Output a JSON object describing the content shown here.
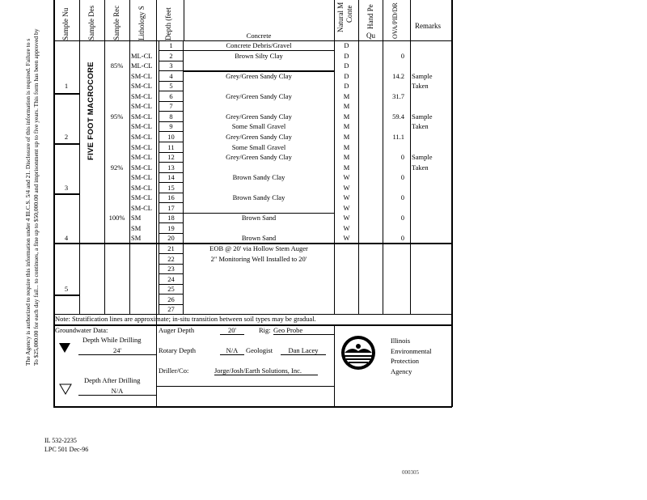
{
  "notice": {
    "line1": "The Agency is authorized to require this information under 4 Ill.C.S. 5/4 and 21. Disclosure of this information is required. Failure to s",
    "line2": "To $25,000.00 for each day fail... to continues, a fine up to $50,000.00 and imprisonment up to five years. This form has been approved by"
  },
  "headers": {
    "sample_number": "Sample Nu",
    "sample_description": "Sample Des",
    "sample_recovery": "Sample Rec",
    "lithology": "Lithology S",
    "depth": "Depth (feet",
    "description": "Concrete",
    "moisture_1": "Natural M",
    "moisture_2": "Conte",
    "hand_pen": "Hand Pe",
    "hand_pen_sub": "Qu",
    "ova": "OVA/PID/DR",
    "remarks": "Remarks"
  },
  "sample_description": "FIVE FOOT MACROCORE",
  "samples": [
    "1",
    "2",
    "3",
    "4",
    "5"
  ],
  "recoveries": [
    {
      "row": 3,
      "value": "85%"
    },
    {
      "row": 8,
      "value": "95%"
    },
    {
      "row": 13,
      "value": "92%"
    },
    {
      "row": 18,
      "value": "100%"
    }
  ],
  "rows": [
    {
      "depth": "1",
      "lith": "",
      "desc": "Concrete Debris/Gravel",
      "moist": "D",
      "ova": "",
      "remark": ""
    },
    {
      "depth": "2",
      "lith": "ML-CL",
      "desc": "Brown Silty Clay",
      "moist": "D",
      "ova": "0",
      "remark": ""
    },
    {
      "depth": "3",
      "lith": "ML-CL",
      "desc": "",
      "moist": "D",
      "ova": "",
      "remark": ""
    },
    {
      "depth": "4",
      "lith": "SM-CL",
      "desc": "Grey/Green Sandy Clay",
      "moist": "D",
      "ova": "14.2",
      "remark": "Sample"
    },
    {
      "depth": "5",
      "lith": "SM-CL",
      "desc": "",
      "moist": "D",
      "ova": "",
      "remark": "Taken"
    },
    {
      "depth": "6",
      "lith": "SM-CL",
      "desc": "Grey/Green Sandy Clay",
      "moist": "M",
      "ova": "31.7",
      "remark": ""
    },
    {
      "depth": "7",
      "lith": "SM-CL",
      "desc": "",
      "moist": "M",
      "ova": "",
      "remark": ""
    },
    {
      "depth": "8",
      "lith": "SM-CL",
      "desc": "Grey/Green Sandy Clay",
      "moist": "M",
      "ova": "59.4",
      "remark": "Sample"
    },
    {
      "depth": "9",
      "lith": "SM-CL",
      "desc": "Some Small Gravel",
      "moist": "M",
      "ova": "",
      "remark": "Taken"
    },
    {
      "depth": "10",
      "lith": "SM-CL",
      "desc": "Grey/Green Sandy Clay",
      "moist": "M",
      "ova": "11.1",
      "remark": ""
    },
    {
      "depth": "11",
      "lith": "SM-CL",
      "desc": "Some Small Gravel",
      "moist": "M",
      "ova": "",
      "remark": ""
    },
    {
      "depth": "12",
      "lith": "SM-CL",
      "desc": "Grey/Green Sandy Clay",
      "moist": "M",
      "ova": "0",
      "remark": "Sample"
    },
    {
      "depth": "13",
      "lith": "SM-CL",
      "desc": "",
      "moist": "M",
      "ova": "",
      "remark": "Taken"
    },
    {
      "depth": "14",
      "lith": "SM-CL",
      "desc": "Brown Sandy Clay",
      "moist": "W",
      "ova": "0",
      "remark": ""
    },
    {
      "depth": "15",
      "lith": "SM-CL",
      "desc": "",
      "moist": "W",
      "ova": "",
      "remark": ""
    },
    {
      "depth": "16",
      "lith": "SM-CL",
      "desc": "Brown Sandy Clay",
      "moist": "W",
      "ova": "0",
      "remark": ""
    },
    {
      "depth": "17",
      "lith": "SM-CL",
      "desc": "",
      "moist": "W",
      "ova": "",
      "remark": ""
    },
    {
      "depth": "18",
      "lith": "SM",
      "desc": "Brown Sand",
      "moist": "W",
      "ova": "0",
      "remark": ""
    },
    {
      "depth": "19",
      "lith": "SM",
      "desc": "",
      "moist": "W",
      "ova": "",
      "remark": ""
    },
    {
      "depth": "20",
      "lith": "SM",
      "desc": "Brown Sand",
      "moist": "W",
      "ova": "0",
      "remark": ""
    },
    {
      "depth": "21",
      "lith": "",
      "desc": "EOB @ 20' via Hollow Stem Auger",
      "moist": "",
      "ova": "",
      "remark": ""
    },
    {
      "depth": "22",
      "lith": "",
      "desc": "2\" Monitoring Well Installed to 20'",
      "moist": "",
      "ova": "",
      "remark": ""
    },
    {
      "depth": "23",
      "lith": "",
      "desc": "",
      "moist": "",
      "ova": "",
      "remark": ""
    },
    {
      "depth": "24",
      "lith": "",
      "desc": "",
      "moist": "",
      "ova": "",
      "remark": ""
    },
    {
      "depth": "25",
      "lith": "",
      "desc": "",
      "moist": "",
      "ova": "",
      "remark": ""
    },
    {
      "depth": "26",
      "lith": "",
      "desc": "",
      "moist": "",
      "ova": "",
      "remark": ""
    },
    {
      "depth": "27",
      "lith": "",
      "desc": "",
      "moist": "",
      "ova": "",
      "remark": ""
    }
  ],
  "note": "Note: Stratification lines are approximate; in-situ transition between soil types may be gradual.",
  "groundwater": {
    "title": "Groundwater Data:",
    "while_label": "Depth While Drilling",
    "while_value": "24'",
    "after_label": "Depth After Drilling",
    "after_value": "N/A"
  },
  "drilling": {
    "auger_label": "Auger Depth",
    "auger_value": "20'",
    "rig_label": "Rig:",
    "rig_value": "Geo Probe",
    "rotary_label": "Rotary Depth",
    "rotary_value": "N/A",
    "geologist_label": "Geologist",
    "geologist_value": "Dan Lacey",
    "driller_label": "Driller/Co:",
    "driller_value": "Jorge/Josh/Earth Solutions, Inc."
  },
  "agency": {
    "line1": "Illinois",
    "line2": "Environmental",
    "line3": "Protection",
    "line4": "Agency"
  },
  "footer": {
    "form_no": "IL 532-2235",
    "lpc": "LPC 501 Dec-96",
    "page_id": "000305"
  }
}
